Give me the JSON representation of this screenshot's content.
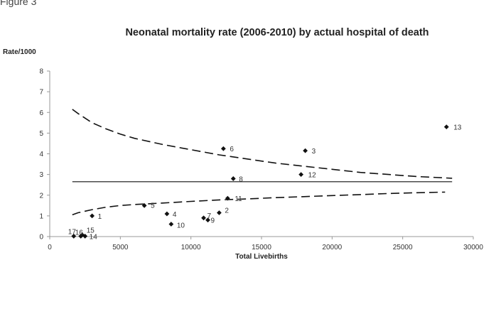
{
  "figure_label": "Figure 3",
  "chart_data": {
    "type": "scatter",
    "title": "Neonatal mortality rate (2006-2010) by actual hospital of death",
    "ylabel": "Rate/1000",
    "xlabel": "Total Livebirths",
    "xlim": [
      0,
      30000
    ],
    "ylim": [
      0,
      8
    ],
    "x_ticks": [
      "0",
      "5000",
      "10000",
      "15000",
      "20000",
      "25000",
      "30000"
    ],
    "y_ticks": [
      "0",
      "1",
      "2",
      "3",
      "4",
      "5",
      "6",
      "7",
      "8"
    ],
    "grid": false,
    "points": [
      {
        "label": "1",
        "x": 3000,
        "y": 1.0
      },
      {
        "label": "2",
        "x": 12000,
        "y": 1.15
      },
      {
        "label": "3",
        "x": 18100,
        "y": 4.15
      },
      {
        "label": "4",
        "x": 8300,
        "y": 1.1
      },
      {
        "label": "5",
        "x": 6700,
        "y": 1.5
      },
      {
        "label": "6",
        "x": 12300,
        "y": 4.25
      },
      {
        "label": "7",
        "x": 10900,
        "y": 0.9
      },
      {
        "label": "8",
        "x": 13000,
        "y": 2.8
      },
      {
        "label": "9",
        "x": 11200,
        "y": 0.8
      },
      {
        "label": "10",
        "x": 8600,
        "y": 0.6
      },
      {
        "label": "11",
        "x": 12600,
        "y": 1.85
      },
      {
        "label": "12",
        "x": 17800,
        "y": 3.0
      },
      {
        "label": "13",
        "x": 28100,
        "y": 5.3
      },
      {
        "label": "14",
        "x": 2500,
        "y": 0.02
      },
      {
        "label": "15",
        "x": 2300,
        "y": 0.08
      },
      {
        "label": "16",
        "x": 2200,
        "y": 0.02
      },
      {
        "label": "17",
        "x": 1700,
        "y": 0.02
      }
    ],
    "mean_line": {
      "y": 2.65,
      "x": [
        1600,
        28500
      ]
    },
    "upper_limit": {
      "x": [
        1600,
        2000,
        3000,
        4000,
        5000,
        6000,
        8000,
        10000,
        12000,
        14000,
        16000,
        18000,
        20000,
        22000,
        24000,
        26000,
        28500
      ],
      "y": [
        6.15,
        5.95,
        5.5,
        5.2,
        4.95,
        4.75,
        4.45,
        4.2,
        3.95,
        3.75,
        3.55,
        3.4,
        3.25,
        3.1,
        3.0,
        2.9,
        2.82
      ]
    },
    "lower_limit": {
      "x": [
        1600,
        2000,
        3000,
        4000,
        5000,
        6000,
        8000,
        10000,
        12000,
        14000,
        16000,
        18000,
        20000,
        22000,
        24000,
        26000,
        28000
      ],
      "y": [
        1.05,
        1.15,
        1.3,
        1.42,
        1.5,
        1.55,
        1.62,
        1.7,
        1.77,
        1.82,
        1.88,
        1.93,
        1.98,
        2.03,
        2.08,
        2.12,
        2.15
      ]
    },
    "colors": {
      "marker": "#111111",
      "line": "#111111",
      "axis": "#999999"
    }
  }
}
